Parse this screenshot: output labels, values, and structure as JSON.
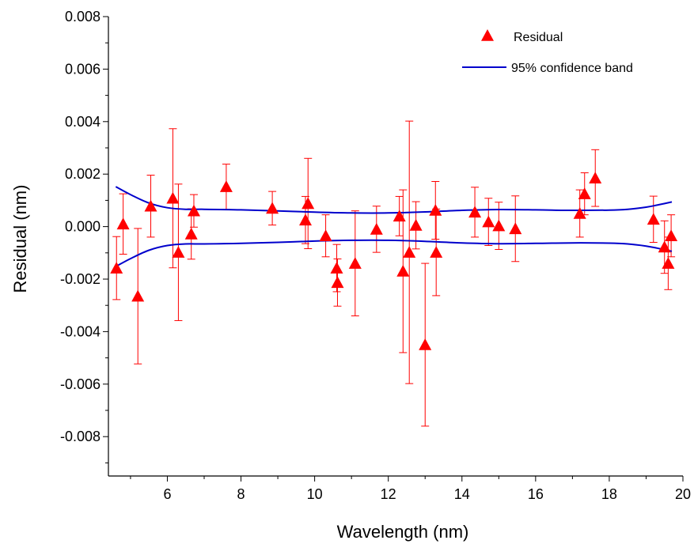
{
  "chart_data": {
    "type": "scatter",
    "xlabel": "Wavelength (nm)",
    "ylabel": "Residual (nm)",
    "xlim": [
      4.4,
      20
    ],
    "ylim": [
      -0.0095,
      0.008
    ],
    "x_ticks": [
      6,
      8,
      10,
      12,
      14,
      16,
      18,
      20
    ],
    "x_tick_labels": [
      "6",
      "8",
      "10",
      "12",
      "14",
      "16",
      "18",
      "20"
    ],
    "y_ticks": [
      -0.008,
      -0.006,
      -0.004,
      -0.002,
      0.0,
      0.002,
      0.004,
      0.006,
      0.008
    ],
    "y_tick_labels": [
      "-0.008",
      "-0.006",
      "-0.004",
      "-0.002",
      "0.000",
      "0.002",
      "0.004",
      "0.006",
      "0.008"
    ],
    "grid": false,
    "legend": {
      "position": "top-right",
      "entries": [
        {
          "label": "Residual",
          "marker": "triangle",
          "color": "#ff0000"
        },
        {
          "label": "95% confidence band",
          "marker": "line",
          "color": "#0000cc"
        }
      ]
    },
    "colors": {
      "points": "#ff0000",
      "errorbars": "#ff0000",
      "band": "#0000cc"
    },
    "series": [
      {
        "name": "Residual",
        "kind": "scatter-errorbar",
        "points": [
          {
            "x": 4.62,
            "y": -0.00158,
            "err": 0.0012
          },
          {
            "x": 4.8,
            "y": 0.0001,
            "err": 0.00115
          },
          {
            "x": 5.2,
            "y": -0.00265,
            "err": 0.00258
          },
          {
            "x": 5.55,
            "y": 0.00078,
            "err": 0.00118
          },
          {
            "x": 6.15,
            "y": 0.00108,
            "err": 0.00265
          },
          {
            "x": 6.3,
            "y": -0.00098,
            "err": 0.0026
          },
          {
            "x": 6.65,
            "y": -0.00028,
            "err": 0.00096
          },
          {
            "x": 6.72,
            "y": 0.0006,
            "err": 0.00062
          },
          {
            "x": 7.6,
            "y": 0.00152,
            "err": 0.00086
          },
          {
            "x": 8.85,
            "y": 0.0007,
            "err": 0.00064
          },
          {
            "x": 9.75,
            "y": 0.00025,
            "err": 0.0009
          },
          {
            "x": 9.82,
            "y": 0.00088,
            "err": 0.00172
          },
          {
            "x": 10.3,
            "y": -0.00035,
            "err": 0.0008
          },
          {
            "x": 10.6,
            "y": -0.00158,
            "err": 0.0009
          },
          {
            "x": 10.62,
            "y": -0.00213,
            "err": 0.0009
          },
          {
            "x": 11.1,
            "y": -0.0014,
            "err": 0.002
          },
          {
            "x": 11.68,
            "y": -0.0001,
            "err": 0.00088
          },
          {
            "x": 12.3,
            "y": 0.0004,
            "err": 0.00075
          },
          {
            "x": 12.4,
            "y": -0.0017,
            "err": 0.0031
          },
          {
            "x": 12.57,
            "y": -0.00098,
            "err": 0.005
          },
          {
            "x": 12.75,
            "y": 5e-05,
            "err": 0.0009
          },
          {
            "x": 13.0,
            "y": -0.0045,
            "err": 0.0031
          },
          {
            "x": 13.28,
            "y": 0.00062,
            "err": 0.0011
          },
          {
            "x": 13.3,
            "y": -0.00098,
            "err": 0.00165
          },
          {
            "x": 14.35,
            "y": 0.00055,
            "err": 0.00095
          },
          {
            "x": 14.72,
            "y": 0.00018,
            "err": 0.0009
          },
          {
            "x": 15.0,
            "y": 3e-05,
            "err": 0.0009
          },
          {
            "x": 15.45,
            "y": -8e-05,
            "err": 0.00125
          },
          {
            "x": 17.2,
            "y": 0.0005,
            "err": 0.0009
          },
          {
            "x": 17.33,
            "y": 0.00125,
            "err": 0.0008
          },
          {
            "x": 17.62,
            "y": 0.00185,
            "err": 0.00108
          },
          {
            "x": 19.2,
            "y": 0.00028,
            "err": 0.00088
          },
          {
            "x": 19.5,
            "y": -0.00078,
            "err": 0.001
          },
          {
            "x": 19.6,
            "y": -0.0014,
            "err": 0.001
          },
          {
            "x": 19.68,
            "y": -0.00035,
            "err": 0.0008
          }
        ]
      },
      {
        "name": "95% confidence band",
        "kind": "band-upper",
        "x": [
          4.6,
          5.0,
          5.5,
          6.0,
          6.5,
          7.0,
          8.0,
          9.0,
          10.0,
          11.0,
          12.0,
          13.0,
          14.0,
          15.0,
          16.0,
          17.0,
          18.0,
          18.5,
          19.0,
          19.3,
          19.7
        ],
        "y": [
          0.00152,
          0.00122,
          0.0009,
          0.00072,
          0.00066,
          0.00066,
          0.00064,
          0.0006,
          0.00055,
          0.00052,
          0.00052,
          0.00056,
          0.00062,
          0.00065,
          0.00064,
          0.00062,
          0.00063,
          0.00066,
          0.00074,
          0.00082,
          0.00094
        ]
      },
      {
        "name": "95% confidence band",
        "kind": "band-lower",
        "x": [
          4.6,
          5.0,
          5.5,
          6.0,
          6.5,
          7.0,
          8.0,
          9.0,
          10.0,
          11.0,
          12.0,
          13.0,
          14.0,
          15.0,
          16.0,
          17.0,
          18.0,
          18.5,
          19.0,
          19.3,
          19.7
        ],
        "y": [
          -0.00152,
          -0.00122,
          -0.0009,
          -0.00072,
          -0.00066,
          -0.00066,
          -0.00064,
          -0.0006,
          -0.00055,
          -0.00052,
          -0.00052,
          -0.00056,
          -0.00062,
          -0.00065,
          -0.00064,
          -0.00062,
          -0.00063,
          -0.00066,
          -0.00074,
          -0.00082,
          -0.00094
        ]
      }
    ]
  }
}
